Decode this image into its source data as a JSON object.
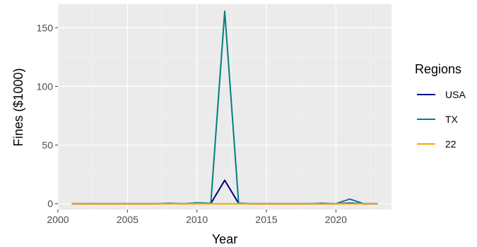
{
  "chart_data": {
    "type": "line",
    "title": "",
    "xlabel": "Year",
    "ylabel": "Fines ($1000)",
    "xlim": [
      2000,
      2024
    ],
    "ylim": [
      -5,
      170
    ],
    "x_ticks": [
      2000,
      2005,
      2010,
      2015,
      2020
    ],
    "y_ticks": [
      0,
      50,
      100,
      150
    ],
    "grid": true,
    "legend": {
      "title": "Regions",
      "position": "right"
    },
    "x": [
      2001,
      2002,
      2003,
      2004,
      2005,
      2006,
      2007,
      2008,
      2009,
      2010,
      2011,
      2012,
      2013,
      2014,
      2015,
      2016,
      2017,
      2018,
      2019,
      2020,
      2021,
      2022,
      2023
    ],
    "series": [
      {
        "name": "USA",
        "color": "#00008b",
        "values": [
          0,
          0,
          0,
          0,
          0,
          0,
          0,
          0.2,
          0,
          0.3,
          0.2,
          20,
          0.3,
          0,
          0,
          0,
          0,
          0,
          0,
          0,
          0.5,
          0,
          0
        ]
      },
      {
        "name": "TX",
        "color": "#008080",
        "values": [
          0,
          0,
          0,
          0,
          0,
          0,
          0,
          0.4,
          0,
          0.8,
          0.4,
          164,
          0.5,
          0,
          0,
          0,
          0,
          0,
          0.5,
          0,
          4,
          0,
          0
        ]
      },
      {
        "name": "22",
        "color": "#ffa500",
        "values": [
          0,
          0,
          0,
          0,
          0,
          0,
          0,
          0,
          0,
          0,
          0,
          0,
          0,
          0,
          0,
          0,
          0,
          0,
          0,
          0,
          0,
          0,
          0
        ]
      }
    ]
  }
}
